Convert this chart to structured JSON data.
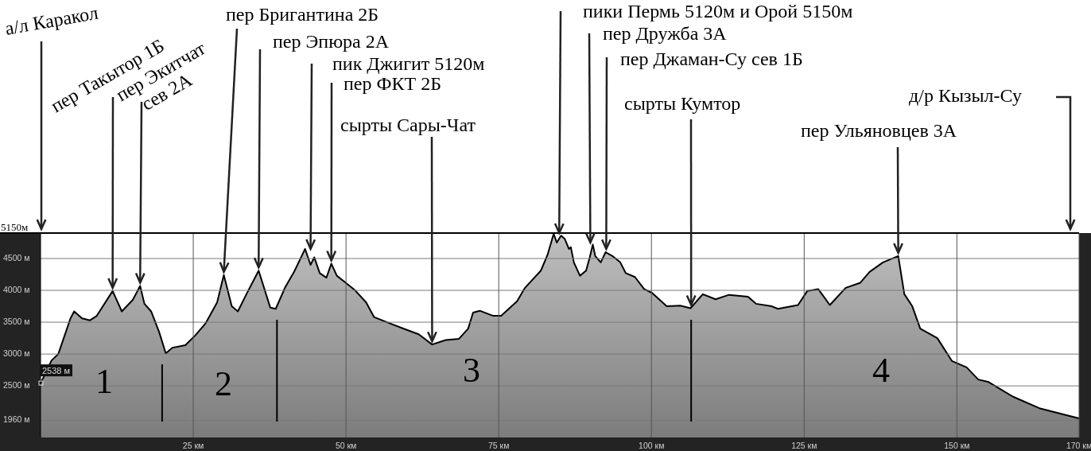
{
  "chart_data": {
    "type": "area",
    "x": [
      0,
      1.8,
      2.9,
      4.9,
      5.5,
      6.8,
      8.1,
      9.2,
      11.8,
      13.3,
      15.1,
      16.3,
      17.0,
      18.1,
      19.4,
      20.5,
      21.6,
      23.7,
      25.3,
      27.0,
      28.9,
      30.0,
      31.3,
      32.3,
      33.7,
      35.7,
      37.6,
      38.5,
      40.0,
      41.5,
      43.3,
      44.2,
      44.8,
      45.7,
      46.8,
      47.6,
      48.5,
      50.2,
      51.5,
      53.3,
      54.6,
      57.2,
      61.9,
      64.1,
      66.3,
      68.5,
      70.0,
      70.8,
      71.9,
      74.1,
      75.4,
      78.0,
      79.3,
      81.9,
      83.0,
      84.0,
      84.5,
      85.2,
      85.8,
      86.5,
      86.8,
      87.3,
      88.3,
      89.3,
      89.9,
      90.4,
      90.8,
      91.7,
      92.5,
      93.6,
      94.9,
      95.8,
      97.3,
      98.8,
      100.1,
      102.5,
      104.7,
      106.4,
      108.4,
      110.5,
      112.7,
      115.8,
      117.1,
      119.7,
      120.7,
      124.0,
      125.5,
      127.3,
      129.2,
      131.8,
      134.2,
      135.7,
      137.9,
      140.4,
      141.4,
      142.7,
      144.0,
      146.8,
      149.2,
      151.6,
      153.5,
      155.2,
      159.2,
      163.5,
      170.0
    ],
    "series": [
      {
        "color": "#9a9a9a",
        "values": [
          2538,
          2900,
          3000,
          3560,
          3670,
          3560,
          3530,
          3600,
          3990,
          3670,
          3850,
          4070,
          3790,
          3670,
          3350,
          3010,
          3100,
          3140,
          3290,
          3480,
          3810,
          4240,
          3750,
          3670,
          3940,
          4310,
          3730,
          3710,
          4040,
          4290,
          4650,
          4400,
          4520,
          4270,
          4200,
          4420,
          4230,
          4100,
          4000,
          3810,
          3580,
          3480,
          3310,
          3150,
          3220,
          3240,
          3400,
          3650,
          3680,
          3600,
          3600,
          3830,
          4040,
          4310,
          4560,
          4890,
          4750,
          4860,
          4810,
          4650,
          4680,
          4440,
          4230,
          4310,
          4520,
          4720,
          4540,
          4440,
          4600,
          4540,
          4440,
          4270,
          4210,
          4020,
          3960,
          3750,
          3760,
          3720,
          3940,
          3860,
          3930,
          3900,
          3790,
          3750,
          3710,
          3770,
          3990,
          4020,
          3770,
          4040,
          4120,
          4290,
          4440,
          4540,
          3940,
          3750,
          3400,
          3250,
          2890,
          2790,
          2600,
          2560,
          2330,
          2150,
          1990
        ]
      }
    ],
    "xlim": [
      0,
      170
    ],
    "xticks": [
      {
        "value": 25,
        "label": "25 км"
      },
      {
        "value": 50,
        "label": "50 км"
      },
      {
        "value": 75,
        "label": "75 км"
      },
      {
        "value": 100,
        "label": "100 км"
      },
      {
        "value": 125,
        "label": "125 км"
      },
      {
        "value": 150,
        "label": "150 км"
      },
      {
        "value": 170,
        "label": "170 км"
      }
    ],
    "ylim": [
      1690,
      4900
    ],
    "yticks": [
      {
        "value": 1960,
        "label": "1960 м"
      },
      {
        "value": 2500,
        "label": "2500 м"
      },
      {
        "value": 3000,
        "label": "3000 м"
      },
      {
        "value": 3500,
        "label": "3500 м"
      },
      {
        "value": 4000,
        "label": "4000 м"
      },
      {
        "value": 4500,
        "label": "4500 м"
      }
    ],
    "grid": true,
    "ref_lines": [
      {
        "axis": "x",
        "value": 19.9,
        "color": "#000000"
      },
      {
        "axis": "x",
        "value": 38.7,
        "color": "#000000"
      },
      {
        "axis": "x",
        "value": 106.5,
        "color": "#000000"
      }
    ],
    "annotations": [
      "а/л Каракол",
      {
        "text": "пер Такытор 1Б",
        "x": 11.8,
        "y": 3990
      },
      {
        "text": "пер Экитчат\nсев 2А",
        "x": 16.3,
        "y": 4070
      },
      {
        "text": "пер Бригантина 2Б",
        "x": 30.0,
        "y": 4240
      },
      {
        "text": "пер Эпюра 2А",
        "x": 35.7,
        "y": 4310
      },
      {
        "text": "пик Джигит 5120м",
        "x": 44.2,
        "y": 4600
      },
      {
        "text": "пер ФКТ 2Б",
        "x": 47.6,
        "y": 4420
      },
      {
        "text": "сырты Сары-Чат",
        "x": 64.1,
        "y": 3150
      },
      {
        "text": "пики Пермь 5120м и Орой 5150м",
        "x": 84.9,
        "y": 4850
      },
      {
        "text": "пер Дружба 3А",
        "x": 90.0,
        "y": 4700
      },
      {
        "text": "пер Джаман-Су сев 1Б",
        "x": 92.6,
        "y": 4600
      },
      {
        "text": "сырты Кумтор",
        "x": 106.5,
        "y": 3720
      },
      {
        "text": "пер Ульяновцев 3А",
        "x": 140.4,
        "y": 4540
      },
      "д/р Кызыл-Су",
      {
        "text": "2538 м",
        "x": 0,
        "y": 2538
      },
      "1",
      "2",
      "3",
      "4",
      "5150м"
    ]
  }
}
